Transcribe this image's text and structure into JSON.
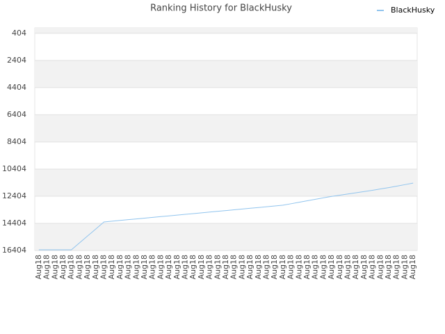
{
  "chart_data": {
    "type": "line",
    "title": "Ranking History for BlackHusky",
    "categories": [
      "Aug18",
      "Aug18",
      "Aug18",
      "Aug18",
      "Aug18",
      "Aug18",
      "Aug18",
      "Aug18",
      "Aug18",
      "Aug18",
      "Aug18",
      "Aug18",
      "Aug18",
      "Aug18",
      "Aug18",
      "Aug18",
      "Aug18",
      "Aug18",
      "Aug18",
      "Aug18",
      "Aug18",
      "Aug18",
      "Aug18",
      "Aug18",
      "Aug18",
      "Aug18",
      "Aug18",
      "Aug18",
      "Aug18",
      "Aug18",
      "Aug18",
      "Aug18",
      "Aug18",
      "Aug18",
      "Aug18",
      "Aug18",
      "Aug18",
      "Aug18",
      "Aug18",
      "Aug18",
      "Aug18",
      "Aug18",
      "Aug18",
      "Aug18",
      "Aug18",
      "Aug18",
      "Aug18"
    ],
    "series": [
      {
        "name": "BlackHusky",
        "color": "#90c4ee",
        "values": [
          16354,
          16354,
          16354,
          16354,
          16354,
          15840,
          15330,
          14820,
          14300,
          14244,
          14188,
          14132,
          14076,
          14020,
          13964,
          13908,
          13852,
          13796,
          13740,
          13684,
          13628,
          13572,
          13516,
          13460,
          13404,
          13348,
          13292,
          13236,
          13180,
          13124,
          13068,
          12960,
          12850,
          12740,
          12630,
          12520,
          12420,
          12330,
          12240,
          12150,
          12060,
          11970,
          11870,
          11770,
          11660,
          11550,
          11436
        ]
      }
    ],
    "ylim": [
      16404,
      0
    ],
    "yticks": [
      404,
      2404,
      4404,
      6404,
      8404,
      10404,
      12404,
      14404,
      16404
    ],
    "grid": true,
    "legend": "top-right"
  }
}
